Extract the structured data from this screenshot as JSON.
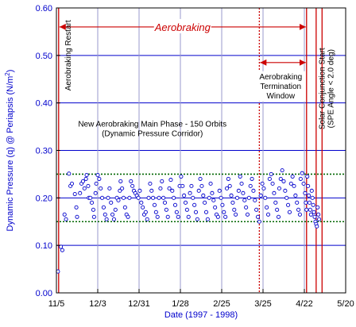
{
  "chart_data": {
    "type": "scatter",
    "title": "",
    "xlabel": "Date (1997 - 1998)",
    "ylabel": "Dynamic Pressure (q) @ Periapsis (N/m",
    "ylabel_sup": "2",
    "ylabel_close": ")",
    "xlim": [
      0,
      196
    ],
    "ylim": [
      0,
      0.6
    ],
    "y_ticks": [
      "0.00",
      "0.10",
      "0.20",
      "0.30",
      "0.40",
      "0.50",
      "0.60"
    ],
    "x_ticks": [
      {
        "label": "11/5",
        "day": 0
      },
      {
        "label": "12/3",
        "day": 28
      },
      {
        "label": "12/31",
        "day": 56
      },
      {
        "label": "1/28",
        "day": 84
      },
      {
        "label": "2/25",
        "day": 112
      },
      {
        "label": "3/25",
        "day": 140
      },
      {
        "label": "4/22",
        "day": 168
      },
      {
        "label": "5/20",
        "day": 196
      }
    ],
    "grid": true,
    "corridor": {
      "lower": 0.15,
      "upper": 0.25
    },
    "vlines": [
      {
        "day": 1.5,
        "style": "solid"
      },
      {
        "day": 137.5,
        "style": "dotted"
      },
      {
        "day": 169.5,
        "style": "solid"
      },
      {
        "day": 176,
        "style": "solid"
      },
      {
        "day": 180,
        "style": "solid"
      }
    ],
    "spans": [
      {
        "from": 1.5,
        "to": 169.5,
        "y": 0.56,
        "label": "Aerobraking"
      },
      {
        "from": 137.5,
        "to": 169.5,
        "y": 0.485,
        "label": ""
      }
    ],
    "annotations": [
      {
        "lines": [
          "Aerobraking Restart"
        ],
        "day": 8,
        "y": 0.5,
        "rotate": true
      },
      {
        "lines": [
          "Aerobraking",
          "Termination",
          "Window"
        ],
        "day": 152,
        "y": 0.45,
        "rotate": false
      },
      {
        "lines": [
          "Solar Conjunction Start",
          "(SPE Angle < 2.0 deg)"
        ],
        "day": 183,
        "y": 0.43,
        "rotate": true
      },
      {
        "lines": [
          "New Aerobraking Main Phase - 150 Orbits",
          "(Dynamic Pressure Corridor)"
        ],
        "day": 65,
        "y": 0.35,
        "rotate": false
      }
    ],
    "series": [
      {
        "points": [
          [
            1,
            0.045
          ],
          [
            3,
            0.097
          ],
          [
            4,
            0.09
          ],
          [
            5.5,
            0.165
          ],
          [
            6.5,
            0.155
          ],
          [
            8.5,
            0.251
          ],
          [
            9.5,
            0.225
          ],
          [
            10.5,
            0.23
          ],
          [
            12.5,
            0.208
          ],
          [
            13.5,
            0.18
          ],
          [
            14,
            0.16
          ],
          [
            16,
            0.21
          ],
          [
            17,
            0.23
          ],
          [
            18,
            0.235
          ],
          [
            19,
            0.22
          ],
          [
            20,
            0.24
          ],
          [
            20.5,
            0.248
          ],
          [
            21.5,
            0.225
          ],
          [
            22,
            0.2
          ],
          [
            23,
            0.2
          ],
          [
            24,
            0.19
          ],
          [
            25,
            0.175
          ],
          [
            25.5,
            0.16
          ],
          [
            26.5,
            0.21
          ],
          [
            27,
            0.23
          ],
          [
            28,
            0.248
          ],
          [
            29,
            0.24
          ],
          [
            30,
            0.22
          ],
          [
            31,
            0.2
          ],
          [
            32,
            0.18
          ],
          [
            33,
            0.165
          ],
          [
            34,
            0.155
          ],
          [
            35,
            0.2
          ],
          [
            36,
            0.22
          ],
          [
            37,
            0.19
          ],
          [
            38,
            0.165
          ],
          [
            39,
            0.155
          ],
          [
            40,
            0.175
          ],
          [
            41,
            0.2
          ],
          [
            42,
            0.195
          ],
          [
            43,
            0.215
          ],
          [
            43.5,
            0.235
          ],
          [
            44.5,
            0.22
          ],
          [
            45.5,
            0.2
          ],
          [
            46.5,
            0.18
          ],
          [
            47.5,
            0.165
          ],
          [
            48.5,
            0.16
          ],
          [
            49.5,
            0.2
          ],
          [
            50.5,
            0.235
          ],
          [
            51.5,
            0.225
          ],
          [
            52.5,
            0.215
          ],
          [
            53.5,
            0.21
          ],
          [
            54.5,
            0.205
          ],
          [
            55.5,
            0.2
          ],
          [
            56.5,
            0.215
          ],
          [
            57.5,
            0.19
          ],
          [
            58.5,
            0.18
          ],
          [
            59.5,
            0.165
          ],
          [
            60.5,
            0.17
          ],
          [
            61.5,
            0.155
          ],
          [
            62.5,
            0.2
          ],
          [
            63.5,
            0.23
          ],
          [
            64.5,
            0.215
          ],
          [
            65.5,
            0.2
          ],
          [
            66.5,
            0.185
          ],
          [
            67.5,
            0.17
          ],
          [
            68.5,
            0.16
          ],
          [
            69.5,
            0.2
          ],
          [
            70.5,
            0.22
          ],
          [
            71.5,
            0.235
          ],
          [
            72.5,
            0.2
          ],
          [
            73.5,
            0.19
          ],
          [
            74.5,
            0.175
          ],
          [
            75.5,
            0.16
          ],
          [
            76.5,
            0.22
          ],
          [
            77.5,
            0.238
          ],
          [
            78.5,
            0.215
          ],
          [
            79.5,
            0.2
          ],
          [
            80.5,
            0.185
          ],
          [
            81.5,
            0.17
          ],
          [
            82.5,
            0.16
          ],
          [
            83.5,
            0.225
          ],
          [
            84.5,
            0.245
          ],
          [
            85.5,
            0.225
          ],
          [
            86.5,
            0.205
          ],
          [
            87.5,
            0.19
          ],
          [
            88.5,
            0.175
          ],
          [
            89.5,
            0.16
          ],
          [
            90.5,
            0.21
          ],
          [
            91.5,
            0.225
          ],
          [
            92.5,
            0.2
          ],
          [
            93.5,
            0.185
          ],
          [
            94.5,
            0.17
          ],
          [
            95.5,
            0.155
          ],
          [
            96.5,
            0.215
          ],
          [
            97.5,
            0.24
          ],
          [
            98.5,
            0.225
          ],
          [
            99.5,
            0.205
          ],
          [
            100.5,
            0.19
          ],
          [
            101.5,
            0.17
          ],
          [
            102.5,
            0.155
          ],
          [
            103.5,
            0.2
          ],
          [
            104.5,
            0.23
          ],
          [
            105.5,
            0.21
          ],
          [
            106.5,
            0.195
          ],
          [
            107.5,
            0.18
          ],
          [
            108.5,
            0.165
          ],
          [
            109.5,
            0.16
          ],
          [
            110.5,
            0.215
          ],
          [
            111.5,
            0.2
          ],
          [
            112.5,
            0.185
          ],
          [
            113.5,
            0.17
          ],
          [
            114.5,
            0.16
          ],
          [
            115.5,
            0.22
          ],
          [
            116.5,
            0.24
          ],
          [
            117.5,
            0.225
          ],
          [
            118.5,
            0.205
          ],
          [
            119.5,
            0.19
          ],
          [
            120.5,
            0.175
          ],
          [
            121.5,
            0.165
          ],
          [
            122.5,
            0.2
          ],
          [
            123.5,
            0.215
          ],
          [
            124.5,
            0.245
          ],
          [
            125.5,
            0.23
          ],
          [
            126.5,
            0.21
          ],
          [
            127.5,
            0.195
          ],
          [
            128.5,
            0.18
          ],
          [
            129.5,
            0.165
          ],
          [
            130.5,
            0.2
          ],
          [
            131.5,
            0.225
          ],
          [
            132.5,
            0.24
          ],
          [
            133.5,
            0.215
          ],
          [
            134.5,
            0.195
          ],
          [
            135.5,
            0.175
          ],
          [
            136.5,
            0.16
          ],
          [
            137.5,
            0.15
          ],
          [
            138.5,
            0.205
          ],
          [
            139.5,
            0.23
          ],
          [
            140.5,
            0.22
          ],
          [
            141.5,
            0.2
          ],
          [
            142.5,
            0.18
          ],
          [
            143.5,
            0.165
          ],
          [
            144.5,
            0.24
          ],
          [
            145.5,
            0.25
          ],
          [
            146.5,
            0.23
          ],
          [
            147.5,
            0.21
          ],
          [
            148.5,
            0.19
          ],
          [
            149.5,
            0.175
          ],
          [
            150.5,
            0.16
          ],
          [
            151,
            0.22
          ],
          [
            152,
            0.24
          ],
          [
            153,
            0.258
          ],
          [
            154,
            0.235
          ],
          [
            155,
            0.215
          ],
          [
            156,
            0.2
          ],
          [
            157,
            0.185
          ],
          [
            158,
            0.17
          ],
          [
            159,
            0.23
          ],
          [
            160,
            0.245
          ],
          [
            161,
            0.225
          ],
          [
            162,
            0.205
          ],
          [
            163,
            0.19
          ],
          [
            164,
            0.175
          ],
          [
            165,
            0.165
          ],
          [
            165.5,
            0.24
          ],
          [
            166.5,
            0.252
          ],
          [
            167.5,
            0.23
          ],
          [
            168.5,
            0.21
          ],
          [
            169,
            0.19
          ],
          [
            169.5,
            0.175
          ],
          [
            170,
            0.245
          ],
          [
            170.5,
            0.225
          ],
          [
            171,
            0.205
          ],
          [
            171.5,
            0.19
          ],
          [
            172,
            0.175
          ],
          [
            172.5,
            0.165
          ],
          [
            173,
            0.215
          ],
          [
            173.5,
            0.2
          ],
          [
            174,
            0.185
          ],
          [
            174.5,
            0.17
          ],
          [
            175,
            0.16
          ],
          [
            175.5,
            0.15
          ],
          [
            176,
            0.145
          ],
          [
            176.5,
            0.14
          ],
          [
            177,
            0.18
          ],
          [
            177.5,
            0.165
          ],
          [
            178,
            0.155
          ]
        ]
      }
    ]
  }
}
